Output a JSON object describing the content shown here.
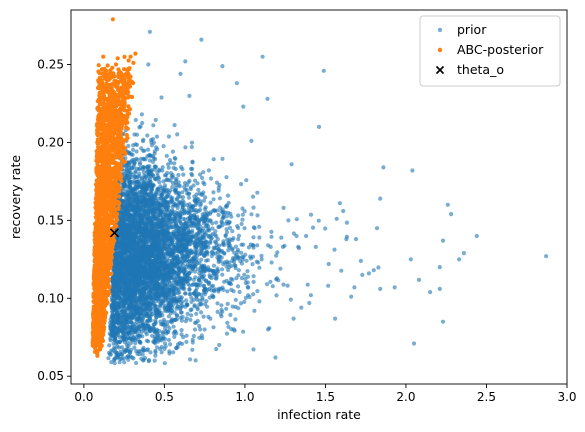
{
  "chart_data": {
    "type": "scatter",
    "xlabel": "infection rate",
    "ylabel": "recovery rate",
    "xlim": [
      -0.08,
      3.0
    ],
    "ylim": [
      0.045,
      0.285
    ],
    "x_ticks": [
      0.0,
      0.5,
      1.0,
      1.5,
      2.0,
      2.5,
      3.0
    ],
    "x_tick_labels": [
      "0.0",
      "0.5",
      "1.0",
      "1.5",
      "2.0",
      "2.5",
      "3.0"
    ],
    "y_ticks": [
      0.05,
      0.1,
      0.15,
      0.2,
      0.25
    ],
    "y_tick_labels": [
      "0.05",
      "0.10",
      "0.15",
      "0.20",
      "0.25"
    ],
    "grid": false,
    "legend_position": "top-right",
    "series": [
      {
        "name": "prior",
        "color": "#1f77b4",
        "marker": "dot",
        "outliers": [
          [
            2.87,
            0.127
          ],
          [
            2.44,
            0.14
          ],
          [
            2.36,
            0.129
          ],
          [
            2.33,
            0.125
          ],
          [
            2.28,
            0.154
          ],
          [
            2.26,
            0.16
          ],
          [
            2.23,
            0.137
          ],
          [
            2.21,
            0.12
          ],
          [
            2.23,
            0.085
          ],
          [
            2.21,
            0.106
          ],
          [
            2.15,
            0.104
          ],
          [
            2.04,
            0.182
          ],
          [
            2.05,
            0.071
          ],
          [
            2.03,
            0.125
          ],
          [
            1.93,
            0.107
          ],
          [
            1.86,
            0.184
          ],
          [
            1.84,
            0.164
          ],
          [
            1.84,
            0.106
          ],
          [
            1.82,
            0.145
          ],
          [
            1.8,
            0.118
          ],
          [
            1.77,
            0.116
          ],
          [
            1.72,
            0.124
          ],
          [
            1.69,
            0.138
          ],
          [
            1.68,
            0.107
          ],
          [
            1.66,
            0.101
          ],
          [
            1.63,
            0.138
          ],
          [
            1.61,
            0.156
          ],
          [
            1.59,
            0.161
          ],
          [
            1.57,
            0.151
          ],
          [
            1.56,
            0.087
          ],
          [
            1.52,
            0.122
          ],
          [
            1.49,
            0.246
          ],
          [
            1.46,
            0.21
          ],
          [
            1.44,
            0.133
          ],
          [
            1.41,
            0.102
          ],
          [
            1.38,
            0.14
          ],
          [
            1.35,
            0.094
          ],
          [
            1.32,
            0.14
          ],
          [
            1.29,
            0.186
          ],
          [
            1.27,
            0.15
          ],
          [
            1.24,
            0.158
          ],
          [
            1.22,
            0.119
          ],
          [
            1.19,
            0.062
          ],
          [
            1.16,
            0.133
          ],
          [
            1.14,
            0.228
          ],
          [
            1.11,
            0.255
          ],
          [
            1.09,
            0.098
          ],
          [
            1.06,
            0.145
          ],
          [
            1.04,
            0.201
          ],
          [
            1.02,
            0.102
          ],
          [
            0.99,
            0.223
          ],
          [
            0.95,
            0.238
          ],
          [
            0.86,
            0.249
          ],
          [
            0.84,
            0.07
          ],
          [
            0.73,
            0.266
          ],
          [
            0.69,
            0.08
          ],
          [
            0.63,
            0.252
          ],
          [
            0.6,
            0.244
          ],
          [
            0.41,
            0.271
          ],
          [
            0.4,
            0.25
          ],
          [
            0.36,
            0.218
          ],
          [
            0.33,
            0.205
          ],
          [
            0.3,
            0.062
          ],
          [
            0.28,
            0.066
          ],
          [
            0.44,
            0.06
          ]
        ]
      },
      {
        "name": "ABC-posterior",
        "color": "#ff7f0e",
        "marker": "dot",
        "outliers": [
          [
            0.18,
            0.279
          ],
          [
            0.32,
            0.257
          ],
          [
            0.29,
            0.255
          ],
          [
            0.21,
            0.254
          ],
          [
            0.12,
            0.255
          ],
          [
            0.25,
            0.247
          ],
          [
            0.27,
            0.243
          ],
          [
            0.07,
            0.072
          ],
          [
            0.09,
            0.08
          ]
        ]
      },
      {
        "name": "theta_o",
        "color": "#000000",
        "marker": "x",
        "points": [
          [
            0.19,
            0.142
          ]
        ]
      }
    ]
  }
}
